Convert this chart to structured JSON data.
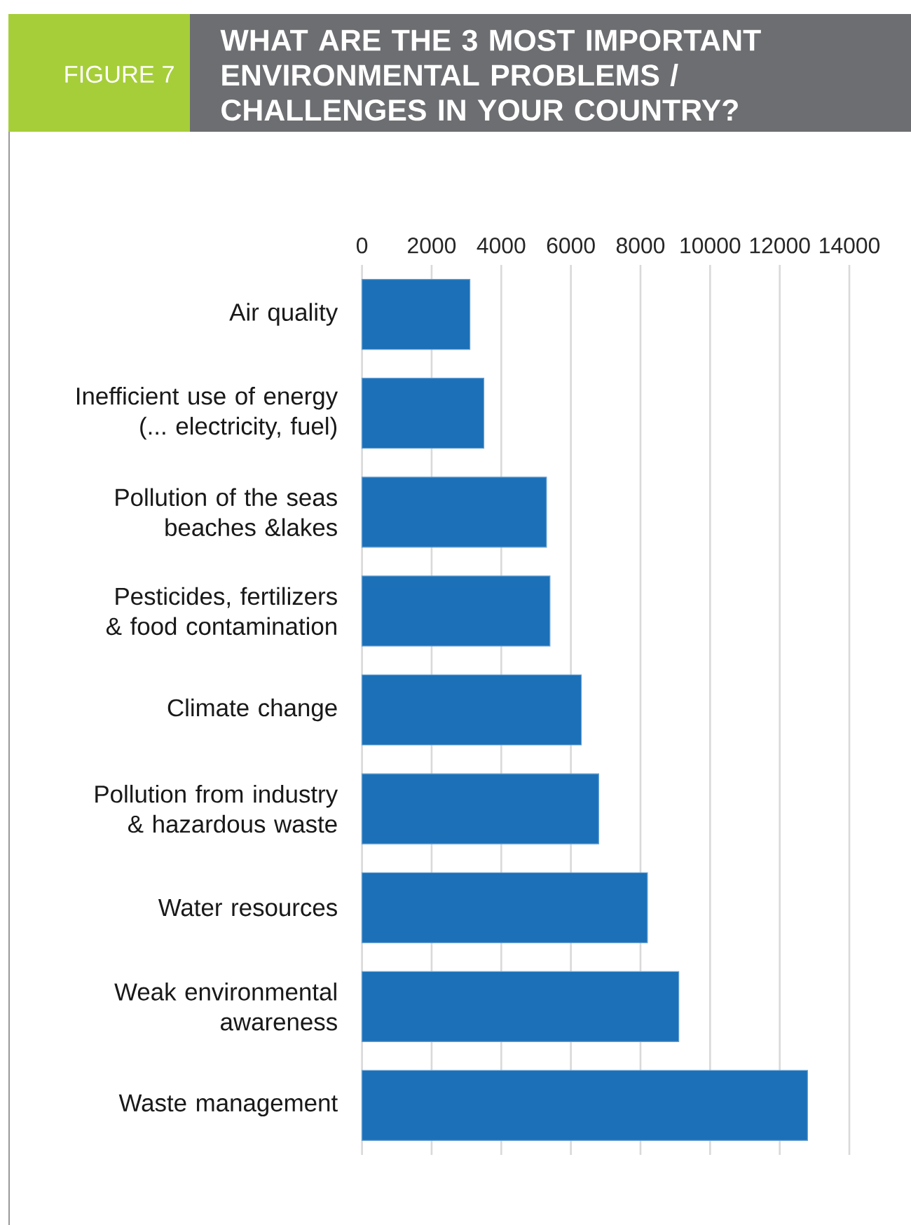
{
  "chart_data": {
    "type": "bar",
    "orientation": "horizontal",
    "title": "WHAT ARE THE 3 MOST IMPORTANT\nENVIRONMENTAL PROBLEMS /\nCHALLENGES IN YOUR COUNTRY?",
    "annotations": [
      "FIGURE 7"
    ],
    "categories": [
      "Air quality",
      "Inefficient use of energy\n(... electricity, fuel)",
      "Pollution of the seas\nbeaches &lakes",
      "Pesticides, fertilizers\n& food contamination",
      "Climate change",
      "Pollution from industry\n& hazardous waste",
      "Water resources",
      "Weak environmental\nawareness",
      "Waste management"
    ],
    "values": [
      3100,
      3500,
      5300,
      5400,
      6300,
      6800,
      8200,
      9100,
      12800
    ],
    "color": "#1b70b8",
    "xlim": [
      0,
      14000
    ],
    "xticks": [
      0,
      2000,
      4000,
      6000,
      8000,
      10000,
      12000,
      14000
    ],
    "grid": "x"
  }
}
